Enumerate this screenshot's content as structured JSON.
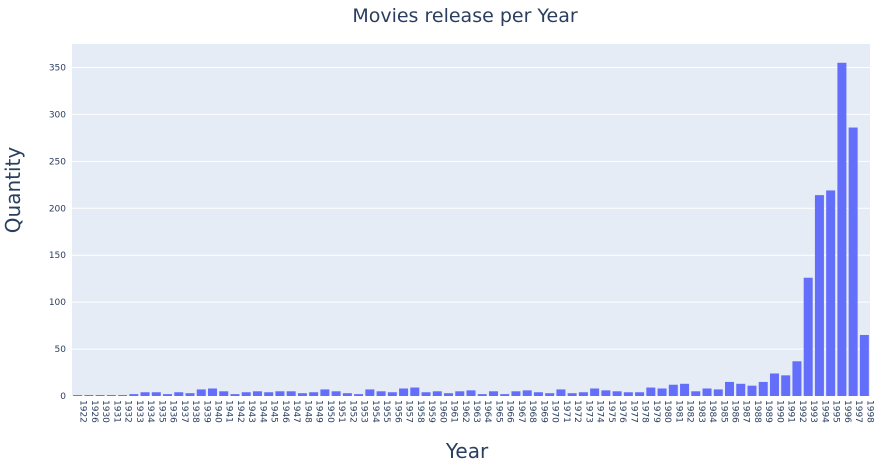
{
  "chart_data": {
    "type": "bar",
    "title": "Movies release per Year",
    "xlabel": "Year",
    "ylabel": "Quantity",
    "ylim": [
      0,
      375
    ],
    "yticks": [
      0,
      50,
      100,
      150,
      200,
      250,
      300,
      350
    ],
    "grid": true,
    "legend": "none",
    "bar_color": "#636efa",
    "plot_bg": "#e5ecf6",
    "text_color": "#2a3f5f",
    "categories": [
      "1922",
      "1926",
      "1930",
      "1931",
      "1932",
      "1933",
      "1934",
      "1935",
      "1936",
      "1937",
      "1938",
      "1939",
      "1940",
      "1941",
      "1942",
      "1943",
      "1944",
      "1945",
      "1946",
      "1947",
      "1948",
      "1949",
      "1950",
      "1951",
      "1952",
      "1953",
      "1954",
      "1955",
      "1956",
      "1957",
      "1958",
      "1959",
      "1960",
      "1961",
      "1962",
      "1963",
      "1964",
      "1965",
      "1966",
      "1967",
      "1968",
      "1969",
      "1970",
      "1971",
      "1972",
      "1973",
      "1974",
      "1975",
      "1976",
      "1977",
      "1978",
      "1979",
      "1980",
      "1981",
      "1982",
      "1983",
      "1984",
      "1985",
      "1986",
      "1987",
      "1988",
      "1989",
      "1990",
      "1991",
      "1992",
      "1993",
      "1994",
      "1995",
      "1996",
      "1997",
      "1998"
    ],
    "values": [
      1,
      1,
      1,
      1,
      1,
      2,
      4,
      4,
      2,
      4,
      3,
      7,
      8,
      5,
      2,
      4,
      5,
      4,
      5,
      5,
      3,
      4,
      7,
      5,
      3,
      2,
      7,
      5,
      4,
      8,
      9,
      4,
      5,
      3,
      5,
      6,
      2,
      5,
      2,
      5,
      6,
      4,
      3,
      7,
      3,
      4,
      8,
      6,
      5,
      4,
      4,
      9,
      8,
      12,
      13,
      5,
      8,
      7,
      15,
      13,
      11,
      15,
      24,
      22,
      37,
      126,
      214,
      219,
      355,
      286,
      65
    ]
  }
}
